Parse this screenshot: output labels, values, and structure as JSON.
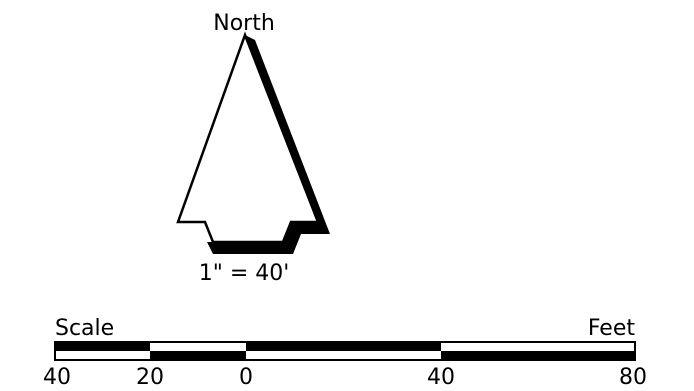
{
  "north_arrow": {
    "label": "North"
  },
  "scale_bar": {
    "ratio": "1\" = 40'",
    "left_label": "Scale",
    "right_label": "Feet",
    "ticks": [
      "40",
      "20",
      "0",
      "40",
      "80"
    ]
  }
}
